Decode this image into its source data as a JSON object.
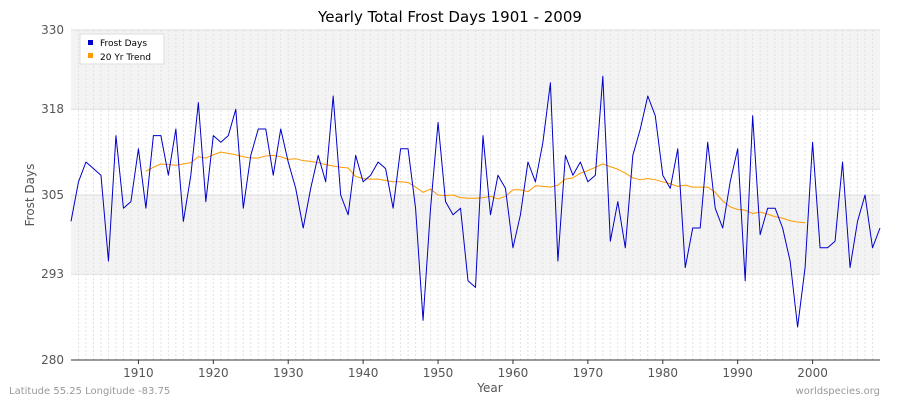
{
  "chart_data": {
    "type": "line",
    "title": "Yearly Total Frost Days 1901 - 2009",
    "xlabel": "Year",
    "ylabel": "Frost Days",
    "xlim": [
      1901,
      2009
    ],
    "ylim": [
      280,
      330
    ],
    "x_ticks": [
      1910,
      1920,
      1930,
      1940,
      1950,
      1960,
      1970,
      1980,
      1990,
      2000
    ],
    "y_ticks": [
      280,
      293,
      305,
      318,
      330
    ],
    "grid": true,
    "legend_position": "top-left",
    "series": [
      {
        "name": "Frost Days",
        "color": "#0000cc",
        "x": [
          1901,
          1902,
          1903,
          1904,
          1905,
          1906,
          1907,
          1908,
          1909,
          1910,
          1911,
          1912,
          1913,
          1914,
          1915,
          1916,
          1917,
          1918,
          1919,
          1920,
          1921,
          1922,
          1923,
          1924,
          1925,
          1926,
          1927,
          1928,
          1929,
          1930,
          1931,
          1932,
          1933,
          1934,
          1935,
          1936,
          1937,
          1938,
          1939,
          1940,
          1941,
          1942,
          1943,
          1944,
          1945,
          1946,
          1947,
          1948,
          1949,
          1950,
          1951,
          1952,
          1953,
          1954,
          1955,
          1956,
          1957,
          1958,
          1959,
          1960,
          1961,
          1962,
          1963,
          1964,
          1965,
          1966,
          1967,
          1968,
          1969,
          1970,
          1971,
          1972,
          1973,
          1974,
          1975,
          1976,
          1977,
          1978,
          1979,
          1980,
          1981,
          1982,
          1983,
          1984,
          1985,
          1986,
          1987,
          1988,
          1989,
          1990,
          1991,
          1992,
          1993,
          1994,
          1995,
          1996,
          1997,
          1998,
          1999,
          2000,
          2001,
          2002,
          2003,
          2004,
          2005,
          2006,
          2007,
          2008,
          2009
        ],
        "values": [
          301,
          307,
          310,
          309,
          308,
          295,
          314,
          303,
          304,
          312,
          303,
          314,
          314,
          308,
          315,
          301,
          308,
          319,
          304,
          314,
          313,
          314,
          318,
          303,
          311,
          315,
          315,
          308,
          315,
          310,
          306,
          300,
          306,
          311,
          307,
          320,
          305,
          302,
          311,
          307,
          308,
          310,
          309,
          303,
          312,
          312,
          303,
          286,
          303,
          316,
          304,
          302,
          303,
          292,
          291,
          314,
          302,
          308,
          306,
          297,
          302,
          310,
          307,
          313,
          322,
          295,
          311,
          308,
          310,
          307,
          308,
          323,
          298,
          304,
          297,
          311,
          315,
          320,
          317,
          308,
          306,
          312,
          294,
          300,
          300,
          313,
          303,
          300,
          307,
          312,
          292,
          317,
          299,
          303,
          303,
          300,
          295,
          285,
          294,
          313,
          297,
          297,
          298,
          310,
          294,
          301,
          305,
          297,
          300
        ]
      },
      {
        "name": "20 Yr Trend",
        "color": "#ff9900",
        "x": [
          1911,
          1912,
          1913,
          1914,
          1915,
          1916,
          1917,
          1918,
          1919,
          1920,
          1921,
          1922,
          1923,
          1924,
          1925,
          1926,
          1927,
          1928,
          1929,
          1930,
          1931,
          1932,
          1933,
          1934,
          1935,
          1936,
          1937,
          1938,
          1939,
          1940,
          1941,
          1942,
          1943,
          1944,
          1945,
          1946,
          1947,
          1948,
          1949,
          1950,
          1951,
          1952,
          1953,
          1954,
          1955,
          1956,
          1957,
          1958,
          1959,
          1960,
          1961,
          1962,
          1963,
          1964,
          1965,
          1966,
          1967,
          1968,
          1969,
          1970,
          1971,
          1972,
          1973,
          1974,
          1975,
          1976,
          1977,
          1978,
          1979,
          1980,
          1981,
          1982,
          1983,
          1984,
          1985,
          1986,
          1987,
          1988,
          1989,
          1990,
          1991,
          1992,
          1993,
          1994,
          1995,
          1996,
          1997,
          1998,
          1999
        ],
        "values": [
          308.6,
          309.2,
          309.7,
          309.6,
          309.5,
          309.7,
          309.9,
          310.8,
          310.6,
          311.1,
          311.5,
          311.3,
          311.1,
          310.8,
          310.6,
          310.6,
          310.9,
          311.0,
          310.8,
          310.4,
          310.5,
          310.2,
          310.1,
          309.9,
          309.6,
          309.4,
          309.2,
          309.1,
          307.8,
          307.5,
          307.4,
          307.4,
          307.2,
          307.0,
          307.0,
          306.9,
          306.2,
          305.4,
          305.9,
          305.0,
          304.9,
          305.0,
          304.6,
          304.5,
          304.5,
          304.6,
          304.8,
          304.4,
          304.8,
          305.8,
          305.8,
          305.5,
          306.4,
          306.3,
          306.2,
          306.5,
          307.4,
          307.6,
          308.3,
          308.7,
          309.2,
          309.7,
          309.3,
          308.9,
          308.3,
          307.6,
          307.3,
          307.5,
          307.3,
          307.0,
          306.7,
          306.3,
          306.5,
          306.2,
          306.2,
          306.2,
          305.4,
          304.1,
          303.2,
          302.8,
          302.7,
          302.2,
          302.4,
          302.1,
          301.7,
          301.5,
          301.1,
          300.9,
          300.8
        ]
      }
    ]
  },
  "footer": {
    "location": "Latitude 55.25 Longitude -83.75",
    "source": "worldspecies.org"
  }
}
